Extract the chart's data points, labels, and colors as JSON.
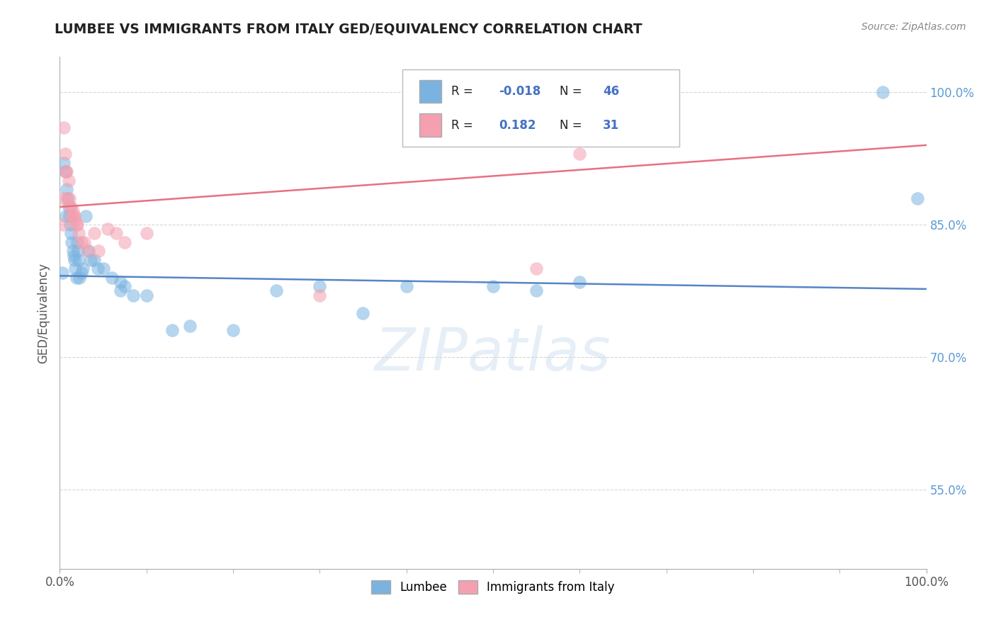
{
  "title": "LUMBEE VS IMMIGRANTS FROM ITALY GED/EQUIVALENCY CORRELATION CHART",
  "source": "Source: ZipAtlas.com",
  "ylabel": "GED/Equivalency",
  "xlim": [
    0.0,
    1.0
  ],
  "ylim": [
    0.46,
    1.04
  ],
  "yticks": [
    0.55,
    0.7,
    0.85,
    1.0
  ],
  "ytick_labels": [
    "55.0%",
    "70.0%",
    "85.0%",
    "100.0%"
  ],
  "xtick_labels": [
    "0.0%",
    "100.0%"
  ],
  "grid_color": "#cccccc",
  "background_color": "#ffffff",
  "lumbee_color": "#7ab3e0",
  "italy_color": "#f4a0b0",
  "lumbee_line_color": "#5585c5",
  "italy_line_color": "#e87080",
  "lumbee_R": -0.018,
  "lumbee_N": 46,
  "italy_R": 0.182,
  "italy_N": 31,
  "lumbee_line_y0": 0.792,
  "lumbee_line_y1": 0.777,
  "italy_line_y0": 0.87,
  "italy_line_y1": 0.94,
  "lumbee_scatter_x": [
    0.003,
    0.005,
    0.006,
    0.007,
    0.008,
    0.009,
    0.01,
    0.011,
    0.012,
    0.013,
    0.014,
    0.015,
    0.016,
    0.017,
    0.018,
    0.019,
    0.02,
    0.021,
    0.022,
    0.023,
    0.025,
    0.027,
    0.03,
    0.033,
    0.036,
    0.04,
    0.044,
    0.05,
    0.06,
    0.07,
    0.075,
    0.085,
    0.1,
    0.13,
    0.15,
    0.2,
    0.25,
    0.3,
    0.35,
    0.4,
    0.5,
    0.55,
    0.6,
    0.07,
    0.95,
    0.99
  ],
  "lumbee_scatter_y": [
    0.795,
    0.92,
    0.91,
    0.86,
    0.89,
    0.88,
    0.87,
    0.86,
    0.85,
    0.84,
    0.83,
    0.82,
    0.815,
    0.81,
    0.8,
    0.79,
    0.83,
    0.82,
    0.81,
    0.79,
    0.795,
    0.8,
    0.86,
    0.82,
    0.81,
    0.81,
    0.8,
    0.8,
    0.79,
    0.785,
    0.78,
    0.77,
    0.77,
    0.73,
    0.735,
    0.73,
    0.775,
    0.78,
    0.75,
    0.78,
    0.78,
    0.775,
    0.785,
    0.775,
    1.0,
    0.88
  ],
  "italy_scatter_x": [
    0.003,
    0.004,
    0.005,
    0.006,
    0.007,
    0.008,
    0.009,
    0.01,
    0.011,
    0.012,
    0.013,
    0.014,
    0.015,
    0.016,
    0.017,
    0.018,
    0.019,
    0.02,
    0.022,
    0.025,
    0.028,
    0.032,
    0.04,
    0.045,
    0.055,
    0.065,
    0.075,
    0.1,
    0.3,
    0.55,
    0.6
  ],
  "italy_scatter_y": [
    0.88,
    0.85,
    0.96,
    0.93,
    0.91,
    0.91,
    0.88,
    0.9,
    0.88,
    0.87,
    0.87,
    0.86,
    0.865,
    0.86,
    0.86,
    0.855,
    0.85,
    0.85,
    0.84,
    0.83,
    0.83,
    0.82,
    0.84,
    0.82,
    0.845,
    0.84,
    0.83,
    0.84,
    0.77,
    0.8,
    0.93
  ],
  "watermark_text": "ZIPatlas",
  "legend_label_lumbee": "Lumbee",
  "legend_label_italy": "Immigrants from Italy"
}
